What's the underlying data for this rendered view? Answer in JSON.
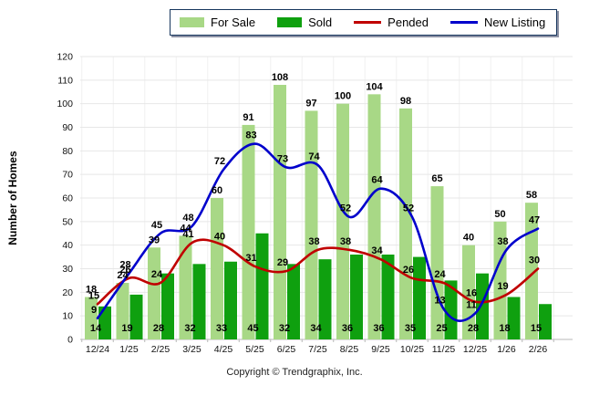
{
  "chart_data": {
    "type": "combo",
    "categories": [
      "12/24",
      "1/25",
      "2/25",
      "3/25",
      "4/25",
      "5/25",
      "6/25",
      "7/25",
      "8/25",
      "9/25",
      "10/25",
      "11/25",
      "12/25",
      "1/26",
      "2/26"
    ],
    "series": [
      {
        "name": "For Sale",
        "type": "bar",
        "color": "#A8D886",
        "values": [
          18,
          24,
          39,
          44,
          60,
          91,
          108,
          97,
          100,
          104,
          98,
          65,
          40,
          50,
          58
        ]
      },
      {
        "name": "Sold",
        "type": "bar",
        "color": "#0FA00F",
        "values": [
          14,
          19,
          28,
          32,
          33,
          45,
          32,
          34,
          36,
          36,
          35,
          25,
          28,
          18,
          15
        ]
      },
      {
        "name": "Pended",
        "type": "line",
        "color": "#C00000",
        "values": [
          15,
          26,
          24,
          41,
          40,
          31,
          29,
          38,
          38,
          34,
          26,
          24,
          16,
          19,
          30
        ]
      },
      {
        "name": "New Listing",
        "type": "line",
        "color": "#0000CC",
        "values": [
          9,
          28,
          45,
          48,
          72,
          83,
          73,
          74,
          52,
          64,
          52,
          13,
          11,
          38,
          47
        ]
      }
    ],
    "title": "",
    "xlabel": "",
    "ylabel": "Number of Homes",
    "ylim": [
      0,
      120
    ],
    "ytick_step": 10,
    "grid": true,
    "legend_position": "top"
  },
  "colors": {
    "legend_border": "#16365d",
    "grid_line": "#e7e7e7",
    "vertical_grid_line": "#f0f0f0",
    "axis_line": "#b9b9b9",
    "data_label": "#000000",
    "tick_label": "#111111"
  },
  "footer": {
    "copyright": "Copyright © Trendgraphix, Inc."
  }
}
